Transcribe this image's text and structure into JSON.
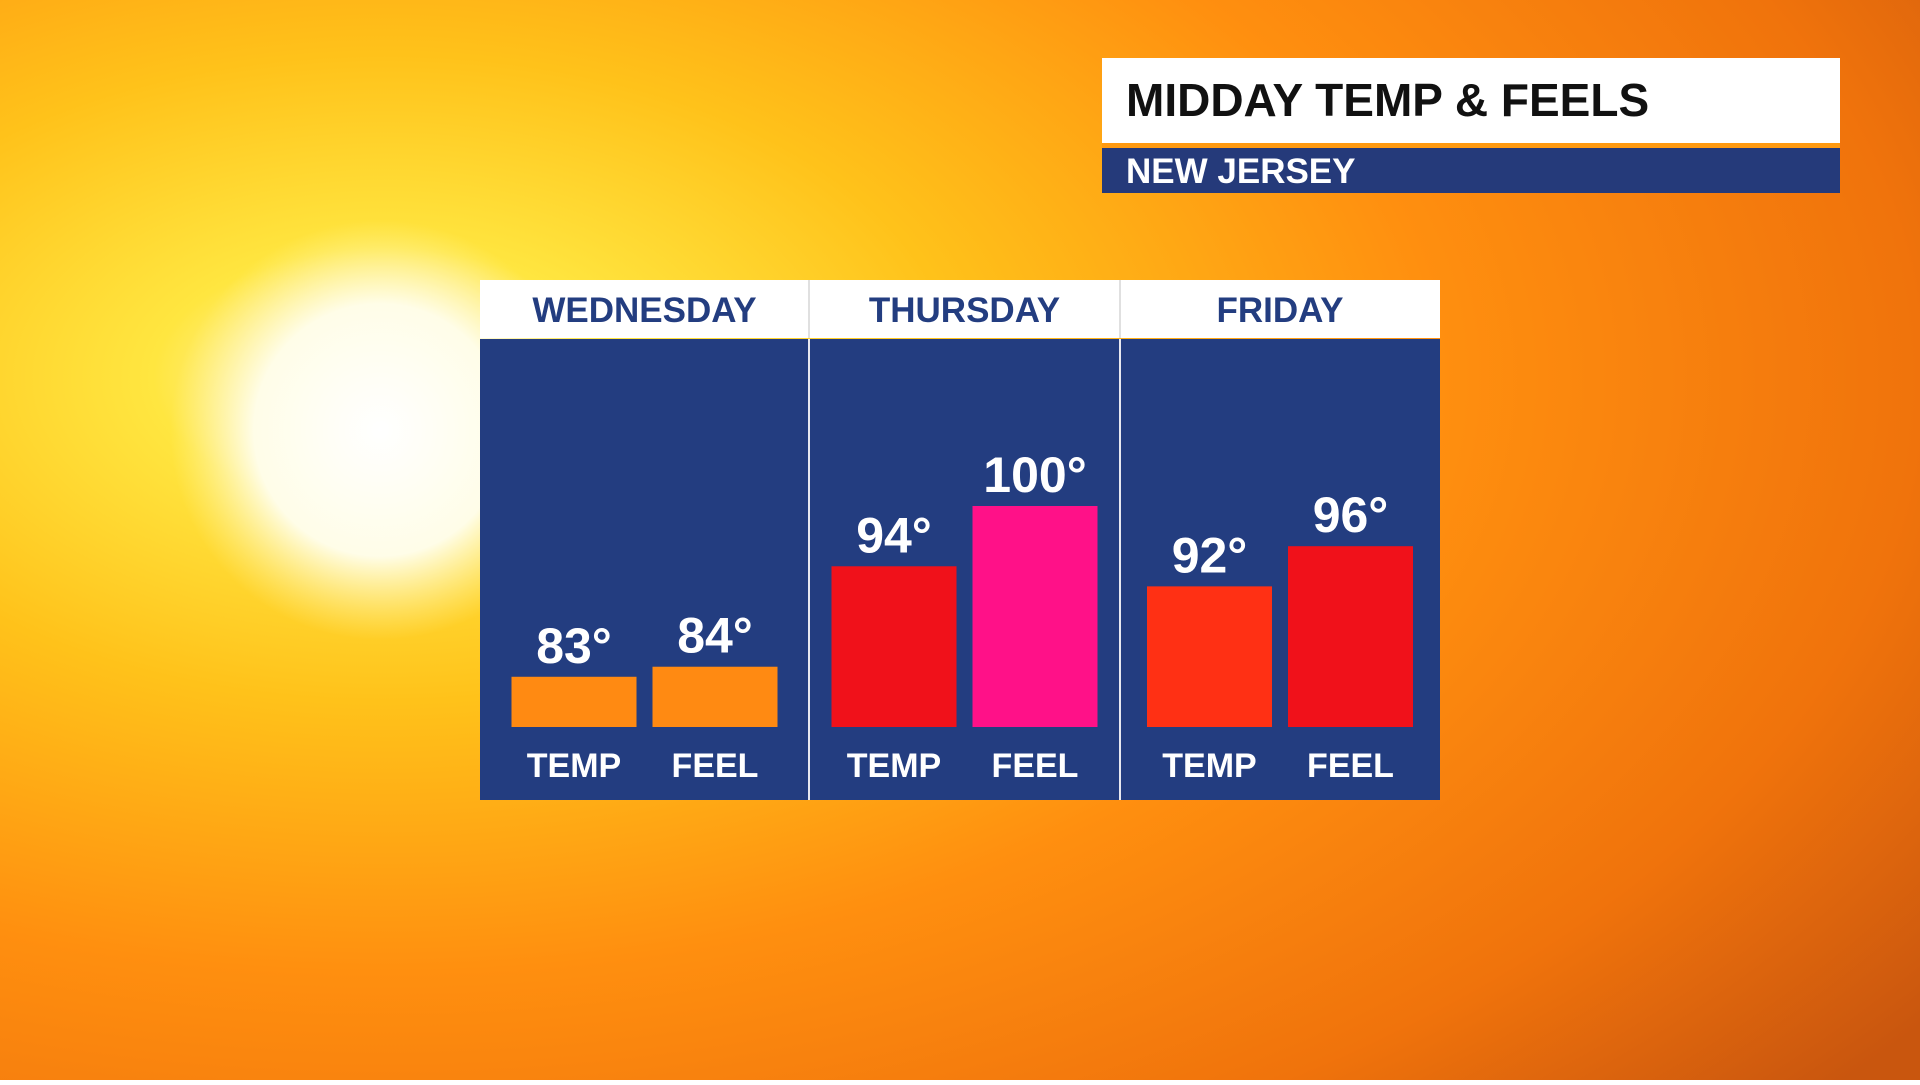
{
  "chart_data": {
    "type": "bar",
    "title": "MIDDAY TEMP & FEELS",
    "subtitle": "NEW JERSEY",
    "categories": [
      "WEDNESDAY",
      "THURSDAY",
      "FRIDAY"
    ],
    "series": [
      {
        "name": "TEMP",
        "values": [
          83,
          94,
          92
        ],
        "value_labels": [
          "83°",
          "94°",
          "92°"
        ],
        "colors": [
          "#ff8a12",
          "#f0111a",
          "#ff3014"
        ]
      },
      {
        "name": "FEEL",
        "values": [
          84,
          100,
          96
        ],
        "value_labels": [
          "84°",
          "100°",
          "96°"
        ],
        "colors": [
          "#ff8a12",
          "#ff1188",
          "#f0111a"
        ]
      }
    ],
    "ylim": [
      78,
      100
    ]
  }
}
